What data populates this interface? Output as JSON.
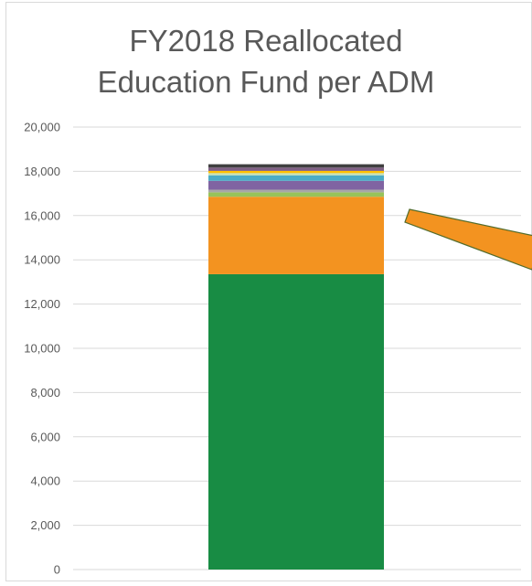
{
  "chart_data": {
    "type": "bar",
    "stacked": true,
    "title_lines": [
      "FY2018 Reallocated",
      "Education Fund per ADM"
    ],
    "xlabel": "",
    "ylabel": "",
    "ylim": [
      0,
      20000
    ],
    "y_ticks": [
      "0",
      "2,000",
      "4,000",
      "6,000",
      "8,000",
      "10,000",
      "12,000",
      "14,000",
      "16,000",
      "18,000",
      "20,000"
    ],
    "grid": true,
    "legend": "none",
    "categories": [
      ""
    ],
    "series": [
      {
        "values": [
          13350
        ],
        "color": "#188c44"
      },
      {
        "values": [
          3500
        ],
        "color": "#f39320"
      },
      {
        "values": [
          200
        ],
        "color": "#97c35a"
      },
      {
        "values": [
          120
        ],
        "color": "#a8a8a8"
      },
      {
        "values": [
          400
        ],
        "color": "#8064a2"
      },
      {
        "values": [
          250
        ],
        "color": "#4bacc6"
      },
      {
        "values": [
          100
        ],
        "color": "#c5e0b4"
      },
      {
        "values": [
          100
        ],
        "color": "#ffc000"
      },
      {
        "values": [
          150
        ],
        "color": "#7f6084"
      },
      {
        "values": [
          150
        ],
        "color": "#404040"
      }
    ],
    "annotation": {
      "shape": "arrow",
      "direction": "right",
      "color": "#f39320",
      "border": "#536c2c"
    }
  }
}
